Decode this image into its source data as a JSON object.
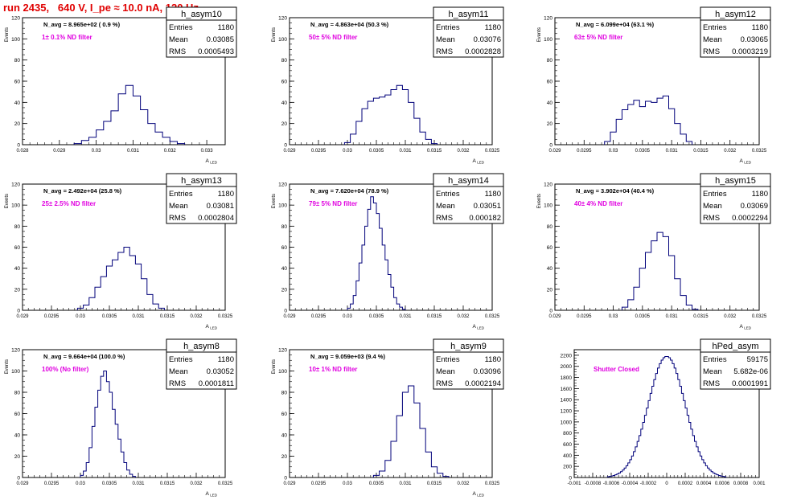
{
  "page": {
    "title": "run 2435,   640 V, I_pe ≈ 10.0 nA, 120 Hz"
  },
  "chart_data": [
    {
      "type": "histogram",
      "name": "h_asym10",
      "ylabel": "Events",
      "xlabel": "A_LED",
      "xlim": [
        0.028,
        0.0335
      ],
      "ylim": [
        0,
        120
      ],
      "xticks": [
        "0.028",
        "0.029",
        "0.03",
        "0.031",
        "0.032",
        "0.033"
      ],
      "xtick_values": [
        0.028,
        0.029,
        0.03,
        0.031,
        0.032,
        0.033
      ],
      "yticks": [
        0,
        20,
        40,
        60,
        80,
        100,
        120
      ],
      "n_avg": "N_avg = 8.965e+02 ( 0.9 %)",
      "annotation": "1± 0.1% ND filter",
      "stats": {
        "entries": "1180",
        "mean": "0.03085",
        "rms": "0.0005493"
      },
      "bins": [
        [
          0.0294,
          0.0296,
          1
        ],
        [
          0.0296,
          0.0298,
          4
        ],
        [
          0.0298,
          0.03,
          7
        ],
        [
          0.03,
          0.0302,
          14
        ],
        [
          0.0302,
          0.0304,
          22
        ],
        [
          0.0304,
          0.0306,
          32
        ],
        [
          0.0306,
          0.0308,
          48
        ],
        [
          0.0308,
          0.031,
          56
        ],
        [
          0.031,
          0.0312,
          46
        ],
        [
          0.0312,
          0.0314,
          33
        ],
        [
          0.0314,
          0.0316,
          20
        ],
        [
          0.0316,
          0.0318,
          12
        ],
        [
          0.0318,
          0.032,
          7
        ],
        [
          0.032,
          0.0322,
          3
        ],
        [
          0.0322,
          0.0324,
          1
        ]
      ]
    },
    {
      "type": "histogram",
      "name": "h_asym11",
      "ylabel": "Events",
      "xlabel": "A_LED",
      "xlim": [
        0.029,
        0.0325
      ],
      "ylim": [
        0,
        120
      ],
      "xticks": [
        "0.029",
        "0.0295",
        "0.03",
        "0.0305",
        "0.031",
        "0.0315",
        "0.032",
        "0.0325"
      ],
      "xtick_values": [
        0.029,
        0.0295,
        0.03,
        0.0305,
        0.031,
        0.0315,
        0.032,
        0.0325
      ],
      "yticks": [
        0,
        20,
        40,
        60,
        80,
        100,
        120
      ],
      "n_avg": "N_avg = 4.863e+04 (50.3 %)",
      "annotation": "50± 5% ND filter",
      "stats": {
        "entries": "1180",
        "mean": "0.03076",
        "rms": "0.0002828"
      },
      "bins": [
        [
          0.02995,
          0.03005,
          2
        ],
        [
          0.03005,
          0.03015,
          10
        ],
        [
          0.03015,
          0.03025,
          22
        ],
        [
          0.03025,
          0.03035,
          34
        ],
        [
          0.03035,
          0.03045,
          41
        ],
        [
          0.03045,
          0.03055,
          44
        ],
        [
          0.03055,
          0.03065,
          45
        ],
        [
          0.03065,
          0.03075,
          47
        ],
        [
          0.03075,
          0.03085,
          52
        ],
        [
          0.03085,
          0.03095,
          56
        ],
        [
          0.03095,
          0.03105,
          52
        ],
        [
          0.03105,
          0.03115,
          40
        ],
        [
          0.03115,
          0.03125,
          25
        ],
        [
          0.03125,
          0.03135,
          12
        ],
        [
          0.03135,
          0.03145,
          5
        ],
        [
          0.03145,
          0.03155,
          1
        ]
      ]
    },
    {
      "type": "histogram",
      "name": "h_asym12",
      "ylabel": "Events",
      "xlabel": "A_LED",
      "xlim": [
        0.029,
        0.0325
      ],
      "ylim": [
        0,
        120
      ],
      "xticks": [
        "0.029",
        "0.0295",
        "0.03",
        "0.0305",
        "0.031",
        "0.0315",
        "0.032",
        "0.0325"
      ],
      "xtick_values": [
        0.029,
        0.0295,
        0.03,
        0.0305,
        0.031,
        0.0315,
        0.032,
        0.0325
      ],
      "yticks": [
        0,
        20,
        40,
        60,
        80,
        100,
        120
      ],
      "n_avg": "N_avg = 6.099e+04 (63.1 %)",
      "annotation": "63± 5% ND filter",
      "stats": {
        "entries": "1180",
        "mean": "0.03065",
        "rms": "0.0003219"
      },
      "bins": [
        [
          0.02985,
          0.02995,
          3
        ],
        [
          0.02995,
          0.03005,
          12
        ],
        [
          0.03005,
          0.03015,
          24
        ],
        [
          0.03015,
          0.03025,
          33
        ],
        [
          0.03025,
          0.03035,
          38
        ],
        [
          0.03035,
          0.03045,
          42
        ],
        [
          0.03045,
          0.03055,
          36
        ],
        [
          0.03055,
          0.03065,
          41
        ],
        [
          0.03065,
          0.03075,
          40
        ],
        [
          0.03075,
          0.03085,
          44
        ],
        [
          0.03085,
          0.03095,
          46
        ],
        [
          0.03095,
          0.03105,
          34
        ],
        [
          0.03105,
          0.03115,
          20
        ],
        [
          0.03115,
          0.03125,
          10
        ],
        [
          0.03125,
          0.03135,
          3
        ]
      ]
    },
    {
      "type": "histogram",
      "name": "h_asym13",
      "ylabel": "Events",
      "xlabel": "A_LED",
      "xlim": [
        0.029,
        0.0325
      ],
      "ylim": [
        0,
        120
      ],
      "xticks": [
        "0.029",
        "0.0295",
        "0.03",
        "0.0305",
        "0.031",
        "0.0315",
        "0.032",
        "0.0325"
      ],
      "xtick_values": [
        0.029,
        0.0295,
        0.03,
        0.0305,
        0.031,
        0.0315,
        0.032,
        0.0325
      ],
      "yticks": [
        0,
        20,
        40,
        60,
        80,
        100,
        120
      ],
      "n_avg": "N_avg = 2.492e+04 (25.8 %)",
      "annotation": "25± 2.5% ND filter",
      "stats": {
        "entries": "1180",
        "mean": "0.03081",
        "rms": "0.0002804"
      },
      "bins": [
        [
          0.02995,
          0.03005,
          2
        ],
        [
          0.03005,
          0.03015,
          5
        ],
        [
          0.03015,
          0.03025,
          12
        ],
        [
          0.03025,
          0.03035,
          22
        ],
        [
          0.03035,
          0.03045,
          32
        ],
        [
          0.03045,
          0.03055,
          42
        ],
        [
          0.03055,
          0.03065,
          48
        ],
        [
          0.03065,
          0.03075,
          55
        ],
        [
          0.03075,
          0.03085,
          60
        ],
        [
          0.03085,
          0.03095,
          52
        ],
        [
          0.03095,
          0.03105,
          44
        ],
        [
          0.03105,
          0.03115,
          30
        ],
        [
          0.03115,
          0.03125,
          15
        ],
        [
          0.03125,
          0.03135,
          6
        ],
        [
          0.03135,
          0.03145,
          2
        ]
      ]
    },
    {
      "type": "histogram",
      "name": "h_asym14",
      "ylabel": "Events",
      "xlabel": "A_LED",
      "xlim": [
        0.029,
        0.0325
      ],
      "ylim": [
        0,
        120
      ],
      "xticks": [
        "0.029",
        "0.0295",
        "0.03",
        "0.0305",
        "0.031",
        "0.0315",
        "0.032",
        "0.0325"
      ],
      "xtick_values": [
        0.029,
        0.0295,
        0.03,
        0.0305,
        0.031,
        0.0315,
        0.032,
        0.0325
      ],
      "yticks": [
        0,
        20,
        40,
        60,
        80,
        100,
        120
      ],
      "n_avg": "N_avg = 7.620e+04 (78.9 %)",
      "annotation": "79± 5% ND filter",
      "stats": {
        "entries": "1180",
        "mean": "0.03051",
        "rms": "0.000182"
      },
      "bins": [
        [
          0.03,
          0.03005,
          2
        ],
        [
          0.03005,
          0.0301,
          6
        ],
        [
          0.0301,
          0.03015,
          14
        ],
        [
          0.03015,
          0.0302,
          28
        ],
        [
          0.0302,
          0.03025,
          45
        ],
        [
          0.03025,
          0.0303,
          62
        ],
        [
          0.0303,
          0.03035,
          80
        ],
        [
          0.03035,
          0.0304,
          96
        ],
        [
          0.0304,
          0.03045,
          108
        ],
        [
          0.03045,
          0.0305,
          102
        ],
        [
          0.0305,
          0.03055,
          92
        ],
        [
          0.03055,
          0.0306,
          78
        ],
        [
          0.0306,
          0.03065,
          62
        ],
        [
          0.03065,
          0.0307,
          48
        ],
        [
          0.0307,
          0.03075,
          34
        ],
        [
          0.03075,
          0.0308,
          22
        ],
        [
          0.0308,
          0.03085,
          12
        ],
        [
          0.03085,
          0.0309,
          6
        ],
        [
          0.0309,
          0.03095,
          3
        ],
        [
          0.03095,
          0.031,
          1
        ]
      ]
    },
    {
      "type": "histogram",
      "name": "h_asym15",
      "ylabel": "Events",
      "xlabel": "A_LED",
      "xlim": [
        0.029,
        0.0325
      ],
      "ylim": [
        0,
        120
      ],
      "xticks": [
        "0.029",
        "0.0295",
        "0.03",
        "0.0305",
        "0.031",
        "0.0315",
        "0.032",
        "0.0325"
      ],
      "xtick_values": [
        0.029,
        0.0295,
        0.03,
        0.0305,
        0.031,
        0.0315,
        0.032,
        0.0325
      ],
      "yticks": [
        0,
        20,
        40,
        60,
        80,
        100,
        120
      ],
      "n_avg": "N_avg = 3.902e+04 (40.4 %)",
      "annotation": "40± 4% ND filter",
      "stats": {
        "entries": "1180",
        "mean": "0.03069",
        "rms": "0.0002294"
      },
      "bins": [
        [
          0.03015,
          0.03025,
          3
        ],
        [
          0.03025,
          0.03035,
          10
        ],
        [
          0.03035,
          0.03045,
          22
        ],
        [
          0.03045,
          0.03055,
          40
        ],
        [
          0.03055,
          0.03065,
          55
        ],
        [
          0.03065,
          0.03075,
          66
        ],
        [
          0.03075,
          0.03085,
          74
        ],
        [
          0.03085,
          0.03095,
          70
        ],
        [
          0.03095,
          0.03105,
          52
        ],
        [
          0.03105,
          0.03115,
          30
        ],
        [
          0.03115,
          0.03125,
          14
        ],
        [
          0.03125,
          0.03135,
          5
        ],
        [
          0.03135,
          0.03145,
          1
        ]
      ]
    },
    {
      "type": "histogram",
      "name": "h_asym8",
      "ylabel": "Events",
      "xlabel": "A_LED",
      "xlim": [
        0.029,
        0.0325
      ],
      "ylim": [
        0,
        120
      ],
      "xticks": [
        "0.029",
        "0.0295",
        "0.03",
        "0.0305",
        "0.031",
        "0.0315",
        "0.032",
        "0.0325"
      ],
      "xtick_values": [
        0.029,
        0.0295,
        0.03,
        0.0305,
        0.031,
        0.0315,
        0.032,
        0.0325
      ],
      "yticks": [
        0,
        20,
        40,
        60,
        80,
        100,
        120
      ],
      "n_avg": "N_avg = 9.664e+04 (100.0 %)",
      "annotation": "100% (No filter)",
      "stats": {
        "entries": "1180",
        "mean": "0.03052",
        "rms": "0.0001811"
      },
      "bins": [
        [
          0.03,
          0.03005,
          2
        ],
        [
          0.03005,
          0.0301,
          6
        ],
        [
          0.0301,
          0.03015,
          14
        ],
        [
          0.03015,
          0.0302,
          28
        ],
        [
          0.0302,
          0.03025,
          48
        ],
        [
          0.03025,
          0.0303,
          66
        ],
        [
          0.0303,
          0.03035,
          82
        ],
        [
          0.03035,
          0.0304,
          95
        ],
        [
          0.0304,
          0.03045,
          100
        ],
        [
          0.03045,
          0.0305,
          90
        ],
        [
          0.0305,
          0.03055,
          80
        ],
        [
          0.03055,
          0.0306,
          64
        ],
        [
          0.0306,
          0.03065,
          50
        ],
        [
          0.03065,
          0.0307,
          36
        ],
        [
          0.0307,
          0.03075,
          24
        ],
        [
          0.03075,
          0.0308,
          14
        ],
        [
          0.0308,
          0.03085,
          7
        ],
        [
          0.03085,
          0.0309,
          3
        ],
        [
          0.0309,
          0.03095,
          1
        ]
      ]
    },
    {
      "type": "histogram",
      "name": "h_asym9",
      "ylabel": "Events",
      "xlabel": "A_LED",
      "xlim": [
        0.029,
        0.0325
      ],
      "ylim": [
        0,
        120
      ],
      "xticks": [
        "0.029",
        "0.0295",
        "0.03",
        "0.0305",
        "0.031",
        "0.0315",
        "0.032",
        "0.0325"
      ],
      "xtick_values": [
        0.029,
        0.0295,
        0.03,
        0.0305,
        0.031,
        0.0315,
        0.032,
        0.0325
      ],
      "yticks": [
        0,
        20,
        40,
        60,
        80,
        100,
        120
      ],
      "n_avg": "N_avg = 9.059e+03 (9.4 %)",
      "annotation": "10± 1% ND filter",
      "stats": {
        "entries": "1180",
        "mean": "0.03096",
        "rms": "0.0002194"
      },
      "bins": [
        [
          0.03045,
          0.03055,
          2
        ],
        [
          0.03055,
          0.03065,
          6
        ],
        [
          0.03065,
          0.03075,
          16
        ],
        [
          0.03075,
          0.03085,
          34
        ],
        [
          0.03085,
          0.03095,
          58
        ],
        [
          0.03095,
          0.03105,
          80
        ],
        [
          0.03105,
          0.03115,
          86
        ],
        [
          0.03115,
          0.03125,
          70
        ],
        [
          0.03125,
          0.03135,
          46
        ],
        [
          0.03135,
          0.03145,
          24
        ],
        [
          0.03145,
          0.03155,
          10
        ],
        [
          0.03155,
          0.03165,
          4
        ],
        [
          0.03165,
          0.03175,
          1
        ]
      ]
    },
    {
      "type": "histogram",
      "name": "hPed_asym",
      "ylabel": "",
      "xlabel": "",
      "xlim": [
        -0.001,
        0.001
      ],
      "ylim": [
        0,
        2300
      ],
      "xticks": [
        "-0.001",
        "-0.0008",
        "-0.0006",
        "-0.0004",
        "-0.0002",
        "0",
        "0.0002",
        "0.0004",
        "0.0006",
        "0.0008",
        "0.001"
      ],
      "xtick_values": [
        -0.001,
        -0.0008,
        -0.0006,
        -0.0004,
        -0.0002,
        0,
        0.0002,
        0.0004,
        0.0006,
        0.0008,
        0.001
      ],
      "yticks": [
        0,
        200,
        400,
        600,
        800,
        1000,
        1200,
        1400,
        1600,
        1800,
        2000,
        2200
      ],
      "n_avg": "",
      "annotation": "Shutter Closed",
      "stats": {
        "entries": "59175",
        "mean": "5.682e-06",
        "rms": "0.0001991"
      },
      "gaussian": {
        "mean": 0.0,
        "sigma": 0.0001991,
        "peak": 2180,
        "bin_width": 2e-05,
        "range": [
          -0.00064,
          0.00064
        ]
      }
    }
  ]
}
